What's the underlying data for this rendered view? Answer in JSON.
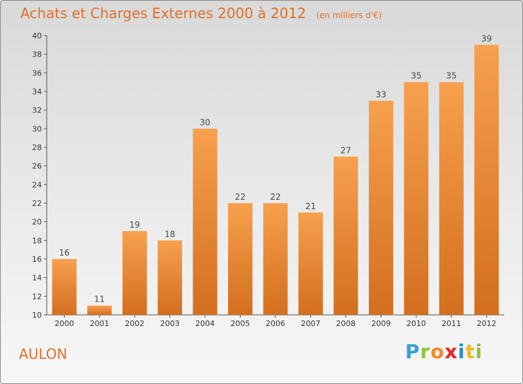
{
  "header": {
    "title": "Achats et Charges Externes 2000 à 2012",
    "subtitle": "(en milliers d'€)"
  },
  "footer": {
    "commune": "AULON",
    "brand_letters": [
      "P",
      "r",
      "o",
      "x",
      "i",
      "t",
      "i"
    ],
    "brand_colors": [
      "#3aa0d8",
      "#8cc63f",
      "#f08a24",
      "#e8262a",
      "#2a8fd0",
      "#f3b81d",
      "#8cc63f"
    ]
  },
  "colors": {
    "bar_top": "#f7a04e",
    "bar_bottom": "#d36f1e",
    "accent": "#e0702a"
  },
  "chart_data": {
    "type": "bar",
    "title": "Achats et Charges Externes 2000 à 2012",
    "subtitle": "(en milliers d'€)",
    "categories": [
      "2000",
      "2001",
      "2002",
      "2003",
      "2004",
      "2005",
      "2006",
      "2007",
      "2008",
      "2009",
      "2010",
      "2011",
      "2012"
    ],
    "values": [
      16,
      11,
      19,
      18,
      30,
      22,
      22,
      21,
      27,
      33,
      35,
      35,
      39
    ],
    "ylim": [
      10,
      40
    ],
    "yticks": [
      10,
      12,
      14,
      16,
      18,
      20,
      22,
      24,
      26,
      28,
      30,
      32,
      34,
      36,
      38,
      40
    ],
    "xlabel": "",
    "ylabel": "",
    "grid": false,
    "data_labels": true
  }
}
